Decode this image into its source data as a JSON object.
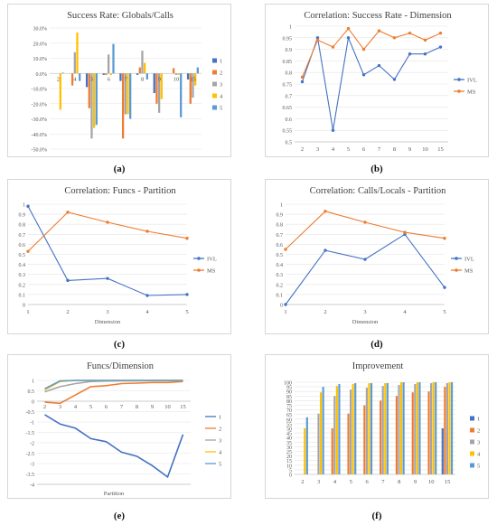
{
  "chart_data": [
    {
      "id": "a",
      "type": "bar",
      "title": "Success Rate: Globals/Calls",
      "caption": "(a)",
      "categories": [
        "2",
        "4",
        "5",
        "6",
        "7",
        "8",
        "9",
        "10",
        "15"
      ],
      "series": [
        {
          "name": "1",
          "values": [
            0.0,
            0.0,
            -9.0,
            -1.0,
            -5.0,
            -1.0,
            -13.0,
            0.0,
            -4.0
          ]
        },
        {
          "name": "2",
          "values": [
            0.0,
            -8.0,
            -23.0,
            -1.0,
            -43.0,
            4.0,
            -20.0,
            3.5,
            -20.0
          ]
        },
        {
          "name": "3",
          "values": [
            0.0,
            14.0,
            -43.0,
            12.5,
            -27.0,
            15.0,
            -26.0,
            -1.0,
            -16.0
          ]
        },
        {
          "name": "4",
          "values": [
            -24.0,
            27.0,
            -36.0,
            -1.0,
            -27.0,
            7.0,
            -17.0,
            -1.0,
            -8.0
          ]
        },
        {
          "name": "5",
          "values": [
            0.5,
            -5.0,
            -34.0,
            19.5,
            -30.0,
            -4.0,
            0.0,
            -29.0,
            4.0
          ]
        }
      ],
      "ylim": [
        -50,
        30
      ],
      "yticks": [
        "30.0%",
        "20.0%",
        "10.0%",
        "0.0%",
        "-10.0%",
        "-20.0%",
        "-30.0%",
        "-40.0%",
        "-50.0%"
      ],
      "colors": [
        "#4472c4",
        "#ed7d31",
        "#a5a5a5",
        "#ffc000",
        "#5b9bd5"
      ]
    },
    {
      "id": "b",
      "type": "line",
      "title": "Correlation: Success Rate - Dimension",
      "caption": "(b)",
      "categories": [
        "2",
        "3",
        "4",
        "5",
        "6",
        "7",
        "8",
        "9",
        "10",
        "15"
      ],
      "series": [
        {
          "name": "IVL",
          "values": [
            0.76,
            0.95,
            0.55,
            0.95,
            0.79,
            0.83,
            0.77,
            0.88,
            0.88,
            0.91
          ],
          "color": "#4472c4"
        },
        {
          "name": "MS",
          "values": [
            0.78,
            0.94,
            0.91,
            0.99,
            0.9,
            0.98,
            0.95,
            0.97,
            0.94,
            0.97
          ],
          "color": "#ed7d31"
        }
      ],
      "ylim": [
        0.5,
        1.0
      ],
      "yticks": [
        "1",
        "0.95",
        "0.9",
        "0.85",
        "0.8",
        "0.75",
        "0.7",
        "0.65",
        "0.6",
        "0.55",
        "0.5"
      ]
    },
    {
      "id": "c",
      "type": "line",
      "title": "Correlation: Funcs - Partition",
      "caption": "(c)",
      "xlabel": "Dimension",
      "categories": [
        "1",
        "2",
        "3",
        "4",
        "5"
      ],
      "series": [
        {
          "name": "IVL",
          "values": [
            0.98,
            0.24,
            0.26,
            0.09,
            0.1
          ],
          "color": "#4472c4"
        },
        {
          "name": "MS",
          "values": [
            0.53,
            0.92,
            0.82,
            0.73,
            0.66
          ],
          "color": "#ed7d31"
        }
      ],
      "ylim": [
        0,
        1.0
      ],
      "yticks": [
        "1",
        "0.9",
        "0.8",
        "0.7",
        "0.6",
        "0.5",
        "0.4",
        "0.3",
        "0.2",
        "0.1",
        "0"
      ]
    },
    {
      "id": "d",
      "type": "line",
      "title": "Correlation: Calls/Locals - Partition",
      "caption": "(d)",
      "xlabel": "Dimension",
      "categories": [
        "1",
        "2",
        "3",
        "4",
        "5"
      ],
      "series": [
        {
          "name": "IVL",
          "values": [
            0.0,
            0.54,
            0.45,
            0.7,
            0.17
          ],
          "color": "#4472c4"
        },
        {
          "name": "MS",
          "values": [
            0.55,
            0.93,
            0.82,
            0.72,
            0.66
          ],
          "color": "#ed7d31"
        }
      ],
      "ylim": [
        0,
        1.0
      ],
      "yticks": [
        "1",
        "0.9",
        "0.8",
        "0.7",
        "0.6",
        "0.5",
        "0.4",
        "0.3",
        "0.2",
        "0.1",
        "0"
      ]
    },
    {
      "id": "e",
      "type": "line",
      "title": "Funcs/Dimension",
      "caption": "(e)",
      "xlabel": "Partition",
      "categories": [
        "2",
        "3",
        "4",
        "5",
        "6",
        "7",
        "8",
        "9",
        "10",
        "15"
      ],
      "series": [
        {
          "name": "1",
          "values": [
            -0.65,
            -1.1,
            -1.3,
            -1.8,
            -1.95,
            -2.45,
            -2.65,
            -3.1,
            -3.65,
            -1.6
          ],
          "color": "#4472c4"
        },
        {
          "name": "2",
          "values": [
            -0.05,
            -0.1,
            0.3,
            0.7,
            0.75,
            0.85,
            0.87,
            0.9,
            0.9,
            0.95
          ],
          "color": "#ed7d31"
        },
        {
          "name": "3",
          "values": [
            0.45,
            0.7,
            0.85,
            0.95,
            0.97,
            0.98,
            0.98,
            0.99,
            0.99,
            1.0
          ],
          "color": "#a5a5a5"
        },
        {
          "name": "4",
          "values": [
            0.55,
            0.95,
            1.0,
            1.0,
            1.0,
            1.0,
            1.0,
            1.0,
            1.0,
            1.0
          ],
          "color": "#ffc000"
        },
        {
          "name": "5",
          "values": [
            0.6,
            0.98,
            1.0,
            1.0,
            1.0,
            1.0,
            1.0,
            1.0,
            1.0,
            1.0
          ],
          "color": "#5b9bd5"
        }
      ],
      "ylim": [
        -4,
        1
      ],
      "yticks": [
        "1",
        "0.5",
        "0",
        "-0.5",
        "-1",
        "-1.5",
        "-2",
        "-2.5",
        "-3",
        "-3.5",
        "-4"
      ]
    },
    {
      "id": "f",
      "type": "bar",
      "title": "Improvement",
      "caption": "(f)",
      "categories": [
        "2",
        "3",
        "4",
        "5",
        "6",
        "7",
        "8",
        "9",
        "10",
        "15"
      ],
      "series": [
        {
          "name": "1",
          "values": [
            0,
            0,
            0,
            0,
            0,
            0,
            0,
            0,
            0,
            50
          ],
          "color": "#4472c4"
        },
        {
          "name": "2",
          "values": [
            0,
            0,
            50,
            66,
            75,
            80,
            85,
            89,
            90,
            95
          ],
          "color": "#ed7d31"
        },
        {
          "name": "3",
          "values": [
            0,
            66,
            85,
            92,
            94,
            96,
            97,
            98,
            99,
            99
          ],
          "color": "#a5a5a5"
        },
        {
          "name": "4",
          "values": [
            50,
            89,
            96,
            98,
            99,
            99,
            100,
            100,
            100,
            100
          ],
          "color": "#ffc000"
        },
        {
          "name": "5",
          "values": [
            62,
            95,
            98,
            99,
            99,
            99,
            100,
            100,
            100,
            100
          ],
          "color": "#5b9bd5"
        }
      ],
      "ylim": [
        0,
        100
      ],
      "yticks": [
        "100",
        "95",
        "90",
        "85",
        "80",
        "75",
        "70",
        "65",
        "60",
        "55",
        "50",
        "45",
        "40",
        "35",
        "30",
        "25",
        "20",
        "15",
        "10",
        "5",
        "0"
      ]
    }
  ]
}
